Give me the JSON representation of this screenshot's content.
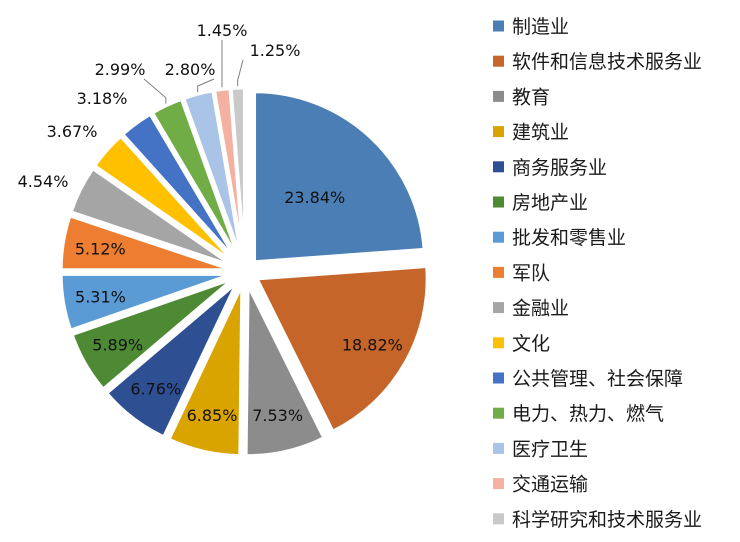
{
  "chart_data": {
    "type": "pie",
    "title": "",
    "legend_position": "right",
    "slices": [
      {
        "label": "制造业",
        "value": 23.84,
        "value_label": "23.84%",
        "color": "#4a7eb5",
        "label_side": "inside"
      },
      {
        "label": "软件和信息技术服务业",
        "value": 18.82,
        "value_label": "18.82%",
        "color": "#c5652a",
        "label_side": "inside"
      },
      {
        "label": "教育",
        "value": 7.53,
        "value_label": "7.53%",
        "color": "#8c8c8c",
        "label_side": "inside"
      },
      {
        "label": "建筑业",
        "value": 6.85,
        "value_label": "6.85%",
        "color": "#d9a400",
        "label_side": "inside"
      },
      {
        "label": "商务服务业",
        "value": 6.76,
        "value_label": "6.76%",
        "color": "#2f4f93",
        "label_side": "inside"
      },
      {
        "label": "房地产业",
        "value": 5.89,
        "value_label": "5.89%",
        "color": "#4e8a33",
        "label_side": "inside"
      },
      {
        "label": "批发和零售业",
        "value": 5.31,
        "value_label": "5.31%",
        "color": "#5b9bd5",
        "label_side": "inside"
      },
      {
        "label": "军队",
        "value": 5.12,
        "value_label": "5.12%",
        "color": "#ed7d31",
        "label_side": "inside"
      },
      {
        "label": "金融业",
        "value": 4.54,
        "value_label": "4.54%",
        "color": "#a5a5a5",
        "label_side": "outside"
      },
      {
        "label": "文化",
        "value": 3.67,
        "value_label": "3.67%",
        "color": "#ffc000",
        "label_side": "outside"
      },
      {
        "label": "公共管理、社会保障",
        "value": 3.18,
        "value_label": "3.18%",
        "color": "#4472c4",
        "label_side": "outside"
      },
      {
        "label": "电力、热力、燃气",
        "value": 2.99,
        "value_label": "2.99%",
        "color": "#70ad47",
        "label_side": "outside"
      },
      {
        "label": "医疗卫生",
        "value": 2.8,
        "value_label": "2.80%",
        "color": "#a9c4e6",
        "label_side": "outside"
      },
      {
        "label": "交通运输",
        "value": 1.45,
        "value_label": "1.45%",
        "color": "#f4b1a0",
        "label_side": "outside"
      },
      {
        "label": "科学研究和技术服务业",
        "value": 1.25,
        "value_label": "1.25%",
        "color": "#c9c9c9",
        "label_side": "outside"
      }
    ]
  }
}
